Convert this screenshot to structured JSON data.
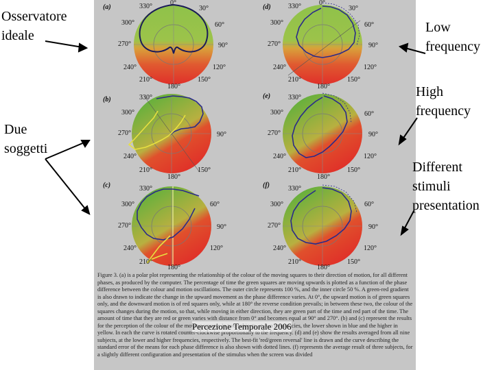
{
  "annotations": {
    "ideal_observer": [
      "Osservatore",
      "ideale"
    ],
    "two_subjects": [
      "Due",
      "soggetti"
    ],
    "low_frequency": [
      "Low",
      "frequency"
    ],
    "high_frequency": [
      "High",
      "frequency"
    ],
    "different_stimuli": [
      "Different",
      "stimuli",
      "presentation"
    ]
  },
  "panels": {
    "a": "(a)",
    "b": "(b)",
    "c": "(c)",
    "d": "(d)",
    "e": "(e)",
    "f": "(f)"
  },
  "angle_labels": {
    "deg0": "0°",
    "deg30": "30°",
    "deg60": "60°",
    "deg90": "90°",
    "deg120": "120°",
    "deg150": "150°",
    "deg180": "180°",
    "deg210": "210°",
    "deg240": "240°",
    "deg270": "270°",
    "deg300": "300°",
    "deg330": "330°"
  },
  "caption": "Figure 3. (a) is a polar plot representing the relationship of the colour of the moving squares to their direction of motion, for all different phases, as produced by the computer. The percentage of time the green squares are moving upwards is plotted as a function of the phase difference between the colour and motion oscillations. The outer circle represents 100 %, and the inner circle 50 %. A green-red gradient is also drawn to indicate the change in the upward movement as the phase difference varies. At 0°, the upward motion is of green squares only, and the downward motion is of red squares only, while at 180° the reverse condition prevails; in between these two, the colour of the squares changes during the motion, so that, while moving in either direction, they are green part of the time and red part of the time. The amount of time that they are red or green varies with distance from 0° and becomes equal at 90° and 270°. (b) and (c) represent the results for the perception of the colour of the moving squares in two subjects, at two frequencies, the lower shown in blue and the higher in yellow. In each the curve is rotated counter-clockwise proportionally to the frequency. (d) and (e) show the results averaged from all nine subjects, at the lower and higher frequencies, respectively. The best-fit 'red/green reversal' line is drawn and the curve describing the standard error of the means for each phase difference is also shown with dotted lines. (f) represents the average result of three subjects, for a slightly different configuration and presentation of the stimulus when the screen was divided",
  "footer": "Percezione Temporale 2006",
  "colors": {
    "green": "#5aa83a",
    "red": "#d8332a",
    "blue": "#2a2a8a",
    "yellow": "#e8e040",
    "figure_bg": "#c6c6c6"
  }
}
